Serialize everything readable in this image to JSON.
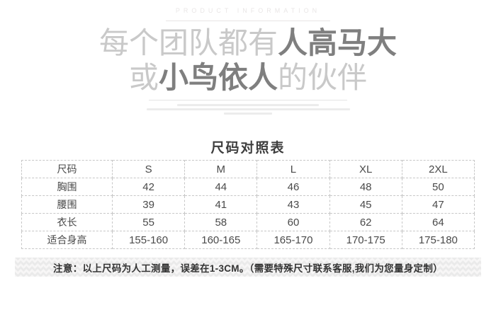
{
  "banner": {
    "eyebrow": "PRODUCT INFORMATION",
    "line1": {
      "light": "每个团队都有",
      "bold": "人高马大"
    },
    "line2": {
      "light_start": "或",
      "bold": "小鸟依人",
      "light_end": "的伙伴"
    }
  },
  "size_chart": {
    "title": "尺码对照表",
    "header": [
      "尺码",
      "S",
      "M",
      "L",
      "XL",
      "2XL"
    ],
    "rows": [
      {
        "label": "胸围",
        "values": [
          "42",
          "44",
          "46",
          "48",
          "50"
        ]
      },
      {
        "label": "腰围",
        "values": [
          "39",
          "41",
          "43",
          "45",
          "47"
        ]
      },
      {
        "label": "衣长",
        "values": [
          "55",
          "58",
          "60",
          "62",
          "64"
        ]
      },
      {
        "label": "适合身高",
        "values": [
          "155-160",
          "160-165",
          "165-170",
          "170-175",
          "175-180"
        ]
      }
    ]
  },
  "note": {
    "text": "注意：以上尺码为人工测量，误差在1-3CM。（需要特殊尺寸联系客服,我们为您量身定制）"
  },
  "colors": {
    "heading_light": "#c9c9c9",
    "heading_bold": "#7f7f7f",
    "eyebrow_text": "#e9e6e6",
    "section_title": "#3e3e3e",
    "table_text": "#4a4a4a",
    "table_border": "#c7c7c7",
    "note_text": "#333333",
    "band_background": "#f7f6f6"
  }
}
